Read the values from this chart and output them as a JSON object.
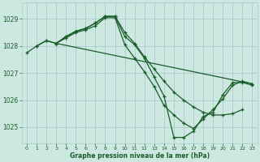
{
  "bg_color": "#cce8e0",
  "grid_color": "#aacccc",
  "line_color": "#1a5c2a",
  "xlabel": "Graphe pression niveau de la mer (hPa)",
  "xlim": [
    -0.5,
    23.5
  ],
  "ylim": [
    1024.4,
    1029.6
  ],
  "yticks": [
    1025,
    1026,
    1027,
    1028,
    1029
  ],
  "xticks": [
    0,
    1,
    2,
    3,
    4,
    5,
    6,
    7,
    8,
    9,
    10,
    11,
    12,
    13,
    14,
    15,
    16,
    17,
    18,
    19,
    20,
    21,
    22,
    23
  ],
  "series": [
    {
      "x": [
        0,
        1,
        2,
        3,
        4,
        5,
        6,
        7,
        8,
        9,
        10,
        11,
        12,
        13,
        14,
        15,
        16,
        17,
        18,
        19,
        20,
        21,
        22
      ],
      "y": [
        1027.75,
        1028.0,
        1028.2,
        1028.1,
        1028.35,
        1028.55,
        1028.65,
        1028.85,
        1029.1,
        1029.1,
        1028.5,
        1028.1,
        1027.6,
        1027.15,
        1026.7,
        1026.3,
        1026.0,
        1025.75,
        1025.55,
        1025.45,
        1025.45,
        1025.5,
        1025.65
      ]
    },
    {
      "x": [
        1,
        2,
        3,
        4,
        5,
        6,
        7,
        8,
        9,
        10,
        11,
        12,
        13,
        14,
        15,
        16,
        17,
        18,
        19,
        20,
        21,
        22,
        23
      ],
      "y": [
        1028.0,
        1028.2,
        1028.1,
        1028.35,
        1028.55,
        1028.65,
        1028.85,
        1029.1,
        1029.1,
        1028.35,
        1028.05,
        1027.55,
        1026.85,
        1026.15,
        1024.62,
        1024.62,
        1024.85,
        1025.4,
        1025.55,
        1026.2,
        1026.65,
        1026.65,
        1026.55
      ]
    },
    {
      "x": [
        3,
        4,
        5,
        6,
        7,
        8,
        9,
        10,
        11,
        12,
        13,
        14,
        15,
        16,
        17,
        18,
        19,
        20,
        21,
        22,
        23
      ],
      "y": [
        1028.1,
        1028.3,
        1028.5,
        1028.6,
        1028.75,
        1029.05,
        1029.05,
        1028.05,
        1027.55,
        1027.05,
        1026.5,
        1025.8,
        1025.45,
        1025.15,
        1024.95,
        1025.3,
        1025.65,
        1026.05,
        1026.55,
        1026.7,
        1026.6
      ]
    },
    {
      "x": [
        3,
        23
      ],
      "y": [
        1028.1,
        1026.6
      ]
    }
  ]
}
